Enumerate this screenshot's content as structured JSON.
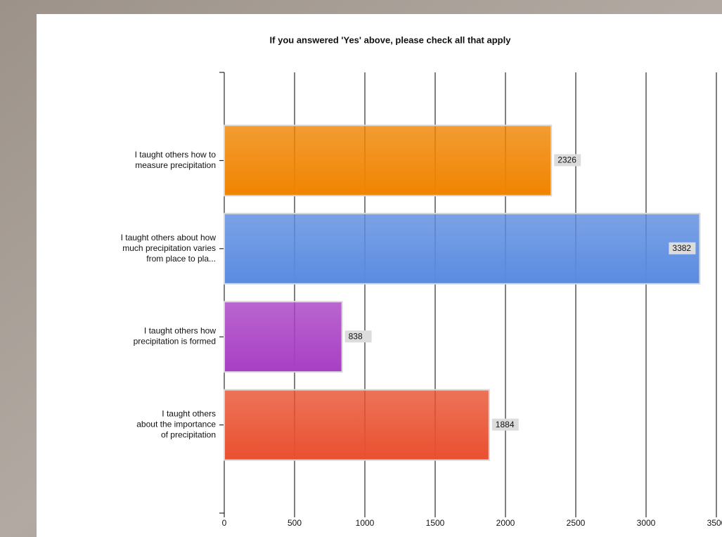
{
  "chart_data": {
    "type": "bar",
    "orientation": "horizontal",
    "title": "If you answered 'Yes' above, please check all that apply",
    "categories": [
      "I taught others how to\nmeasure precipitation",
      "I taught others about how\nmuch precipitation varies\nfrom place to pla...",
      "I taught others how\nprecipitation is formed",
      "I taught others\nabout the importance\nof precipitation"
    ],
    "values": [
      2326,
      3382,
      838,
      1884
    ],
    "colors": [
      "#f08400",
      "#5a8be0",
      "#a83fc4",
      "#e9502f"
    ],
    "ylim": [
      0,
      3500
    ],
    "yticks": [
      0,
      500,
      1000,
      1500,
      2000,
      2500,
      3000,
      3500
    ],
    "grid": true
  }
}
